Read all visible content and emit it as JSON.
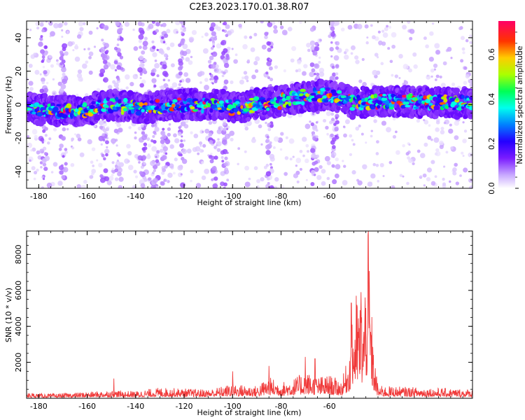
{
  "title": "C2E3.2023.170.01.38.R07",
  "chart_data": [
    {
      "type": "heatmap",
      "xlabel": "Height of straight line (km)",
      "ylabel": "Frequency (Hz)",
      "xlim": [
        -185,
        -1
      ],
      "ylim": [
        -50,
        50
      ],
      "xticks": [
        -180,
        -160,
        -140,
        -120,
        -100,
        -80,
        -60
      ],
      "yticks": [
        -40,
        -20,
        0,
        20,
        40
      ],
      "colorbar": {
        "label": "Normalized spectral amplitude",
        "range": [
          0.0,
          0.75
        ],
        "ticks": [
          0.0,
          0.2,
          0.4,
          0.6
        ],
        "tick_labels": [
          "0.0",
          "0.2",
          "0.4",
          "0.6"
        ],
        "colormap": [
          "#ffffff",
          "#ac6cff",
          "#6a00ff",
          "#0000ff",
          "#00ffff",
          "#00ff66",
          "#66ff00",
          "#ffff00",
          "#ff8800",
          "#ff0000",
          "#ff0066"
        ]
      },
      "band": {
        "center_profile_hz": [
          [
            -185,
            -2
          ],
          [
            -170,
            -4
          ],
          [
            -160,
            -3
          ],
          [
            -150,
            0
          ],
          [
            -140,
            -2
          ],
          [
            -120,
            0
          ],
          [
            -105,
            0
          ],
          [
            -100,
            -2
          ],
          [
            -90,
            0
          ],
          [
            -80,
            2
          ],
          [
            -70,
            5
          ],
          [
            -60,
            6
          ],
          [
            -50,
            1
          ],
          [
            -40,
            2
          ],
          [
            -1,
            1
          ]
        ],
        "half_width_hz": 6,
        "peak_amplitude": 0.72
      },
      "vertical_streaks_km": [
        -178,
        -170,
        -153,
        -147,
        -137,
        -132,
        -128,
        -121,
        -108,
        -103,
        -85,
        -66,
        -58
      ],
      "grid": false
    },
    {
      "type": "line",
      "xlabel": "Height of straight line (km)",
      "ylabel": "SNR (10 * v/v)",
      "color": "#f03a3a",
      "xlim": [
        -185,
        -1
      ],
      "ylim": [
        0,
        9300
      ],
      "xticks": [
        -180,
        -160,
        -140,
        -120,
        -100,
        -80,
        -60
      ],
      "yticks": [
        2000,
        4000,
        6000,
        8000
      ],
      "envelope": [
        {
          "x": -185,
          "y": 300
        },
        {
          "x": -175,
          "y": 250
        },
        {
          "x": -160,
          "y": 350
        },
        {
          "x": -150,
          "y": 450
        },
        {
          "x": -140,
          "y": 400
        },
        {
          "x": -130,
          "y": 600
        },
        {
          "x": -120,
          "y": 550
        },
        {
          "x": -110,
          "y": 500
        },
        {
          "x": -100,
          "y": 800
        },
        {
          "x": -90,
          "y": 700
        },
        {
          "x": -85,
          "y": 1200
        },
        {
          "x": -80,
          "y": 900
        },
        {
          "x": -75,
          "y": 1100
        },
        {
          "x": -70,
          "y": 1500
        },
        {
          "x": -65,
          "y": 1200
        },
        {
          "x": -60,
          "y": 1300
        },
        {
          "x": -55,
          "y": 1000
        },
        {
          "x": -52,
          "y": 2500
        },
        {
          "x": -50,
          "y": 5000
        },
        {
          "x": -48,
          "y": 5800
        },
        {
          "x": -46,
          "y": 5200
        },
        {
          "x": -44,
          "y": 9300
        },
        {
          "x": -42,
          "y": 3000
        },
        {
          "x": -40,
          "y": 700
        },
        {
          "x": -1,
          "y": 500
        }
      ],
      "peaks": [
        {
          "x": -44,
          "y": 9300
        },
        {
          "x": -47,
          "y": 5900
        },
        {
          "x": -49,
          "y": 5700
        },
        {
          "x": -51,
          "y": 5300
        },
        {
          "x": -85,
          "y": 1800
        },
        {
          "x": -70,
          "y": 2300
        },
        {
          "x": -66,
          "y": 2200
        },
        {
          "x": -100,
          "y": 1500
        },
        {
          "x": -149,
          "y": 1100
        }
      ],
      "grid": false
    }
  ]
}
